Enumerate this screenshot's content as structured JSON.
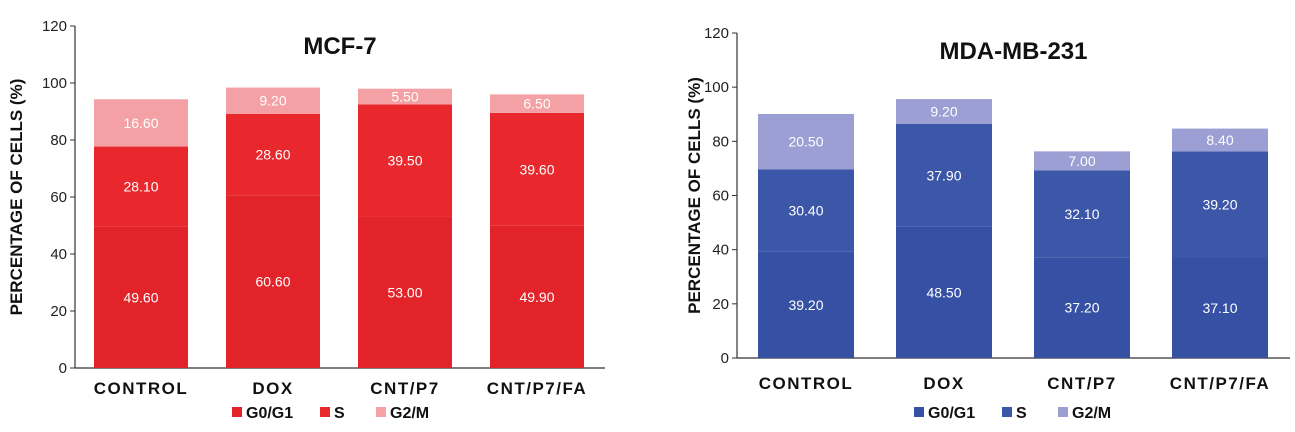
{
  "chart_data": [
    {
      "type": "bar",
      "stacked": true,
      "title": "MCF-7",
      "ylabel": "PERCENTAGE OF CELLS (%)",
      "xlabel": "",
      "ylim": [
        0,
        120
      ],
      "yticks": [
        0,
        20,
        40,
        60,
        80,
        100,
        120
      ],
      "categories": [
        "CONTROL",
        "DOX",
        "CNT/P7",
        "CNT/P7/FA"
      ],
      "series": [
        {
          "name": "G0/G1",
          "color": "#e3232a",
          "values": [
            49.6,
            60.6,
            53.0,
            49.9
          ],
          "labels": [
            "49.60",
            "60.60",
            "53.00",
            "49.90"
          ]
        },
        {
          "name": "S",
          "color": "#e8282d",
          "values": [
            28.1,
            28.6,
            39.5,
            39.6
          ],
          "labels": [
            "28.10",
            "28.60",
            "39.50",
            "39.60"
          ]
        },
        {
          "name": "G2/M",
          "color": "#f3a1a4",
          "values": [
            16.6,
            9.2,
            5.5,
            6.5
          ],
          "labels": [
            "16.60",
            "9.20",
            "5.50",
            "6.50"
          ]
        }
      ],
      "legend_position": "bottom"
    },
    {
      "type": "bar",
      "stacked": true,
      "title": "MDA-MB-231",
      "ylabel": "PERCENTAGE OF CELLS (%)",
      "xlabel": "",
      "ylim": [
        0,
        120
      ],
      "yticks": [
        0,
        20,
        40,
        60,
        80,
        100,
        120
      ],
      "categories": [
        "CONTROL",
        "DOX",
        "CNT/P7",
        "CNT/P7/FA"
      ],
      "series": [
        {
          "name": "G0/G1",
          "color": "#3651a4",
          "values": [
            39.2,
            48.5,
            37.2,
            37.1
          ],
          "labels": [
            "39.20",
            "48.50",
            "37.20",
            "37.10"
          ]
        },
        {
          "name": "S",
          "color": "#3c56a8",
          "values": [
            30.4,
            37.9,
            32.1,
            39.2
          ],
          "labels": [
            "30.40",
            "37.90",
            "32.10",
            "39.20"
          ]
        },
        {
          "name": "G2/M",
          "color": "#9b9fd3",
          "values": [
            20.5,
            9.2,
            7.0,
            8.4
          ],
          "labels": [
            "20.50",
            "9.20",
            "7.00",
            "8.40"
          ]
        }
      ],
      "legend_position": "bottom"
    }
  ]
}
